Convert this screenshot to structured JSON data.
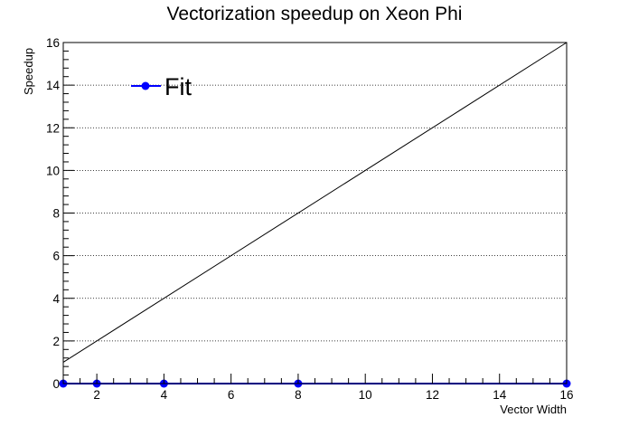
{
  "chart_data": {
    "type": "line",
    "title": "Vectorization speedup on Xeon Phi",
    "xlabel": "Vector Width",
    "ylabel": "Speedup",
    "xlim": [
      1,
      16
    ],
    "ylim": [
      0,
      16
    ],
    "x_ticks": [
      2,
      4,
      6,
      8,
      10,
      12,
      14,
      16
    ],
    "y_ticks": [
      0,
      2,
      4,
      6,
      8,
      10,
      12,
      14,
      16
    ],
    "grid": "horizontal-dotted",
    "legend_position": "top-left",
    "series": [
      {
        "name": "Fit",
        "color": "#0000ff",
        "marker": "circle",
        "x": [
          1,
          2,
          4,
          8,
          16
        ],
        "y": [
          0,
          0,
          0,
          0,
          0
        ]
      }
    ],
    "reference_line": {
      "color": "#000000",
      "x": [
        1,
        16
      ],
      "y": [
        1,
        16
      ]
    }
  }
}
